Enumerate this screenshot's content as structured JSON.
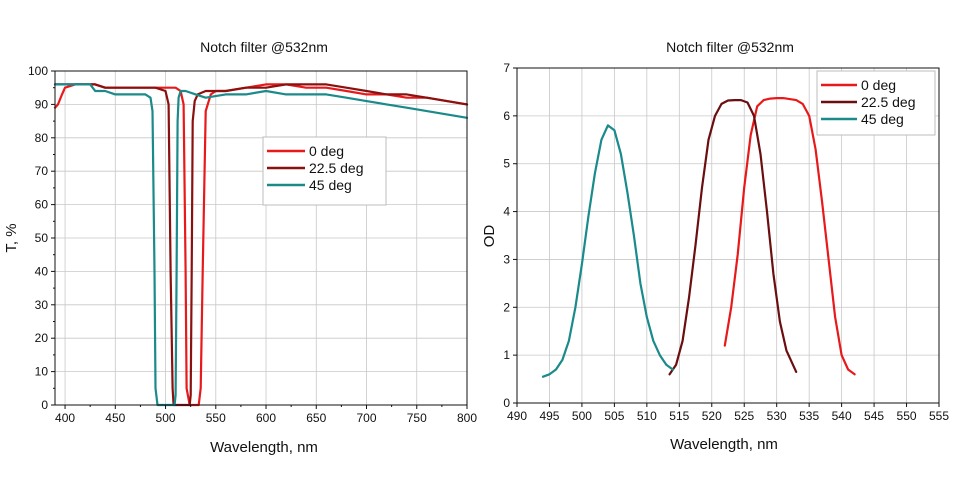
{
  "chart_data": [
    {
      "type": "line",
      "title": "Notch filter @532nm",
      "xlabel": "Wavelength, nm",
      "ylabel": "T, %",
      "xlim": [
        390,
        800
      ],
      "ylim": [
        0,
        100
      ],
      "xticks": [
        400,
        450,
        500,
        550,
        600,
        650,
        700,
        750,
        800
      ],
      "yticks": [
        0,
        10,
        20,
        30,
        40,
        50,
        60,
        70,
        80,
        90,
        100
      ],
      "grid": true,
      "legend_position": "center-right",
      "series": [
        {
          "name": "0 deg",
          "color": "#e8191b",
          "x": [
            390,
            393,
            397,
            400,
            410,
            420,
            430,
            440,
            450,
            460,
            470,
            480,
            490,
            500,
            510,
            515,
            518,
            520,
            521,
            524,
            528,
            530,
            533,
            535,
            537,
            540,
            545,
            550,
            560,
            580,
            600,
            620,
            640,
            660,
            680,
            700,
            720,
            740,
            760,
            780,
            800
          ],
          "y": [
            89,
            90,
            93,
            95,
            96,
            96,
            96,
            95,
            95,
            95,
            95,
            95,
            95,
            95,
            95,
            94,
            90,
            40,
            5,
            0,
            0,
            0,
            0,
            5,
            40,
            88,
            93,
            94,
            94,
            95,
            96,
            96,
            95,
            95,
            94,
            93,
            93,
            92,
            92,
            91,
            90
          ]
        },
        {
          "name": "22.5 deg",
          "color": "#8b1010",
          "x": [
            390,
            395,
            400,
            410,
            420,
            430,
            440,
            450,
            460,
            470,
            480,
            490,
            500,
            503,
            505,
            507,
            508,
            510,
            515,
            520,
            524,
            525,
            526,
            527,
            529,
            532,
            540,
            560,
            580,
            600,
            620,
            640,
            660,
            680,
            700,
            720,
            740,
            760,
            780,
            800
          ],
          "y": [
            96,
            96,
            96,
            96,
            96,
            96,
            95,
            95,
            95,
            95,
            95,
            95,
            94,
            90,
            40,
            5,
            0,
            0,
            0,
            0,
            0,
            3,
            40,
            85,
            91,
            93,
            94,
            94,
            95,
            95,
            96,
            96,
            96,
            95,
            94,
            93,
            93,
            92,
            91,
            90
          ]
        },
        {
          "name": "45 deg",
          "color": "#1a8a8a",
          "x": [
            390,
            395,
            400,
            410,
            420,
            425,
            430,
            440,
            450,
            460,
            470,
            480,
            485,
            487,
            489,
            490,
            492,
            500,
            505,
            508,
            509,
            510,
            511,
            512,
            513,
            515,
            520,
            530,
            540,
            560,
            580,
            600,
            620,
            640,
            660,
            680,
            700,
            720,
            740,
            760,
            780,
            800
          ],
          "y": [
            96,
            96,
            96,
            96,
            96,
            96,
            94,
            94,
            93,
            93,
            93,
            93,
            92,
            88,
            40,
            5,
            0,
            0,
            0,
            0,
            0,
            3,
            40,
            85,
            92,
            94,
            94,
            93,
            92,
            93,
            93,
            94,
            93,
            93,
            93,
            92,
            91,
            90,
            89,
            88,
            87,
            86
          ]
        }
      ]
    },
    {
      "type": "line",
      "title": "Notch filter @532nm",
      "xlabel": "Wavelength, nm",
      "ylabel": "OD",
      "xlim": [
        490,
        555
      ],
      "ylim": [
        0,
        7
      ],
      "xticks": [
        490,
        495,
        500,
        505,
        510,
        515,
        520,
        525,
        530,
        535,
        540,
        545,
        550,
        555
      ],
      "yticks": [
        0,
        1,
        2,
        3,
        4,
        5,
        6,
        7
      ],
      "grid": true,
      "legend_position": "top-right",
      "series": [
        {
          "name": "0 deg",
          "color": "#e8191b",
          "x": [
            522,
            523,
            524,
            525,
            526,
            527,
            528,
            529,
            530,
            531,
            532,
            533,
            534,
            535,
            536,
            537,
            538,
            539,
            540,
            541,
            542
          ],
          "y": [
            1.2,
            2.0,
            3.1,
            4.5,
            5.6,
            6.2,
            6.33,
            6.36,
            6.37,
            6.37,
            6.35,
            6.33,
            6.25,
            6.0,
            5.3,
            4.2,
            3.0,
            1.8,
            1.0,
            0.7,
            0.6
          ]
        },
        {
          "name": "22.5 deg",
          "color": "#6b0e10",
          "x": [
            513.5,
            514.5,
            515.5,
            516.5,
            517.5,
            518.5,
            519.5,
            520.5,
            521.5,
            522.5,
            523.5,
            524.5,
            525.5,
            526.5,
            527.5,
            528.5,
            529.5,
            530.5,
            531.5,
            532.5,
            533
          ],
          "y": [
            0.6,
            0.8,
            1.3,
            2.2,
            3.3,
            4.5,
            5.5,
            6.0,
            6.25,
            6.32,
            6.33,
            6.33,
            6.28,
            6.0,
            5.2,
            4.0,
            2.7,
            1.7,
            1.1,
            0.8,
            0.65
          ]
        },
        {
          "name": "45 deg",
          "color": "#1a8a8a",
          "x": [
            494,
            495,
            496,
            497,
            498,
            499,
            500,
            501,
            502,
            503,
            504,
            505,
            506,
            507,
            508,
            509,
            510,
            511,
            512,
            513,
            514
          ],
          "y": [
            0.55,
            0.6,
            0.7,
            0.9,
            1.3,
            2.0,
            2.9,
            3.9,
            4.8,
            5.5,
            5.8,
            5.7,
            5.2,
            4.4,
            3.5,
            2.5,
            1.8,
            1.3,
            1.0,
            0.8,
            0.7
          ]
        }
      ]
    }
  ]
}
